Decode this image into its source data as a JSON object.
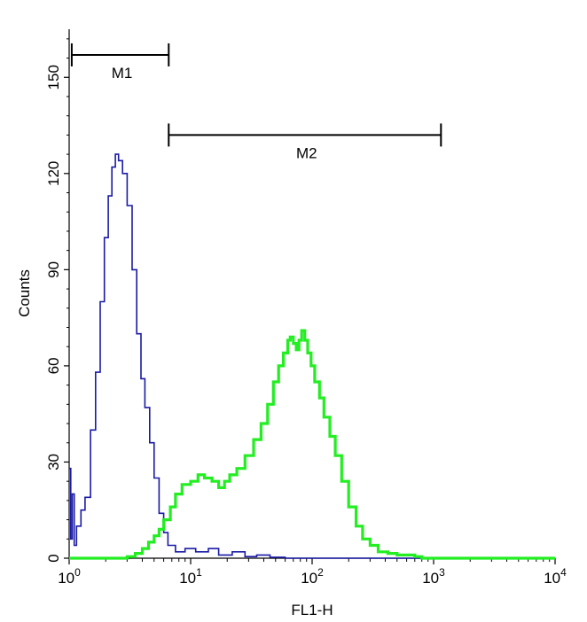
{
  "chart_data": {
    "type": "line",
    "xlabel": "FL1-H",
    "ylabel": "Counts",
    "x_scale": "log",
    "xlim": [
      1,
      10000
    ],
    "ylim": [
      0,
      165
    ],
    "x_ticks": [
      {
        "base": "10",
        "exp": "0",
        "value": 1
      },
      {
        "base": "10",
        "exp": "1",
        "value": 10
      },
      {
        "base": "10",
        "exp": "2",
        "value": 100
      },
      {
        "base": "10",
        "exp": "3",
        "value": 1000
      },
      {
        "base": "10",
        "exp": "4",
        "value": 10000
      }
    ],
    "y_ticks": [
      {
        "label": "0",
        "value": 0
      },
      {
        "label": "30",
        "value": 30
      },
      {
        "label": "60",
        "value": 60
      },
      {
        "label": "90",
        "value": 90
      },
      {
        "label": "120",
        "value": 120
      },
      {
        "label": "150",
        "value": 150
      }
    ],
    "markers": [
      {
        "label": "M1",
        "x_start": 1.05,
        "x_end": 6.6,
        "y": 157
      },
      {
        "label": "M2",
        "x_start": 6.6,
        "x_end": 1150,
        "y": 132
      }
    ],
    "series": [
      {
        "color": "#1a1aa6",
        "points": [
          [
            1.0,
            28
          ],
          [
            1.03,
            6
          ],
          [
            1.06,
            20
          ],
          [
            1.1,
            4
          ],
          [
            1.15,
            10
          ],
          [
            1.25,
            15
          ],
          [
            1.35,
            19
          ],
          [
            1.5,
            40
          ],
          [
            1.65,
            58
          ],
          [
            1.8,
            80
          ],
          [
            1.95,
            100
          ],
          [
            2.1,
            113
          ],
          [
            2.25,
            122
          ],
          [
            2.4,
            126
          ],
          [
            2.55,
            124
          ],
          [
            2.75,
            120
          ],
          [
            3.0,
            110
          ],
          [
            3.3,
            90
          ],
          [
            3.6,
            70
          ],
          [
            3.9,
            56
          ],
          [
            4.2,
            47
          ],
          [
            4.6,
            36
          ],
          [
            5.0,
            25
          ],
          [
            5.5,
            14
          ],
          [
            6.0,
            8
          ],
          [
            6.5,
            4
          ],
          [
            7.5,
            2
          ],
          [
            9,
            3
          ],
          [
            11,
            2
          ],
          [
            14,
            3
          ],
          [
            17,
            1
          ],
          [
            22,
            2
          ],
          [
            28,
            0.5
          ],
          [
            35,
            1
          ],
          [
            45,
            0.3
          ],
          [
            60,
            0
          ],
          [
            100,
            0
          ],
          [
            1000,
            0
          ],
          [
            10000,
            0
          ]
        ]
      },
      {
        "color": "#22ee22",
        "points": [
          [
            1.0,
            0
          ],
          [
            2.5,
            0
          ],
          [
            3.0,
            0.5
          ],
          [
            3.5,
            1.5
          ],
          [
            4.0,
            3
          ],
          [
            4.5,
            5
          ],
          [
            5.0,
            7
          ],
          [
            5.5,
            9
          ],
          [
            6.0,
            12
          ],
          [
            6.8,
            16
          ],
          [
            7.5,
            20
          ],
          [
            8.5,
            23
          ],
          [
            10,
            24
          ],
          [
            11.5,
            26
          ],
          [
            13,
            25
          ],
          [
            15,
            24
          ],
          [
            17,
            22
          ],
          [
            19,
            24
          ],
          [
            21,
            26
          ],
          [
            24,
            28
          ],
          [
            28,
            32
          ],
          [
            33,
            37
          ],
          [
            38,
            42
          ],
          [
            43,
            48
          ],
          [
            48,
            55
          ],
          [
            53,
            60
          ],
          [
            58,
            64
          ],
          [
            63,
            68
          ],
          [
            66,
            69
          ],
          [
            70,
            67
          ],
          [
            74,
            65
          ],
          [
            78,
            68
          ],
          [
            82,
            71
          ],
          [
            87,
            68
          ],
          [
            92,
            64
          ],
          [
            98,
            60
          ],
          [
            105,
            55
          ],
          [
            115,
            50
          ],
          [
            125,
            44
          ],
          [
            140,
            38
          ],
          [
            155,
            32
          ],
          [
            175,
            24
          ],
          [
            200,
            16
          ],
          [
            230,
            10
          ],
          [
            260,
            6
          ],
          [
            300,
            4
          ],
          [
            350,
            2
          ],
          [
            420,
            1.5
          ],
          [
            500,
            1
          ],
          [
            600,
            1
          ],
          [
            700,
            0.5
          ],
          [
            800,
            0
          ],
          [
            1000,
            0
          ],
          [
            10000,
            0
          ]
        ]
      }
    ]
  }
}
